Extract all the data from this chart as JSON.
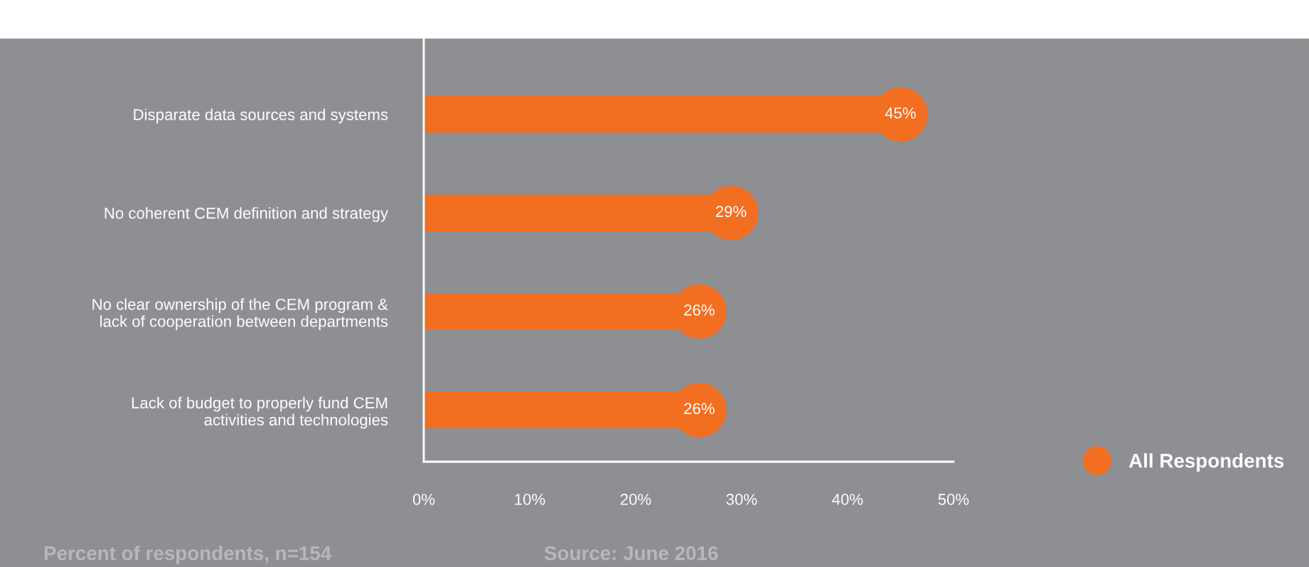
{
  "chart_data": {
    "type": "lollipop",
    "orientation": "horizontal",
    "categories": [
      "Disparate data sources and systems",
      "No coherent CEM definition and strategy",
      "No clear ownership of the CEM program &\nlack of cooperation between departments",
      "Lack of budget to properly fund CEM\nactivities and technologies"
    ],
    "series": [
      {
        "name": "All Respondents",
        "color": "#f26e21",
        "values": [
          45,
          29,
          26,
          26
        ]
      }
    ],
    "xlim": [
      0,
      50
    ],
    "xticks": [
      {
        "value": 0,
        "label": "0%"
      },
      {
        "value": 10,
        "label": "10%"
      },
      {
        "value": 20,
        "label": "20%"
      },
      {
        "value": 30,
        "label": "30%"
      },
      {
        "value": 40,
        "label": "40%"
      },
      {
        "value": 50,
        "label": "50%"
      }
    ],
    "value_labels": [
      "45%",
      "29%",
      "26%",
      "26%"
    ],
    "marker": "circle",
    "grid": false,
    "legend": "bottom right",
    "annotations": [
      "Percent of respondents, n=154",
      "Source: June 2016"
    ]
  }
}
